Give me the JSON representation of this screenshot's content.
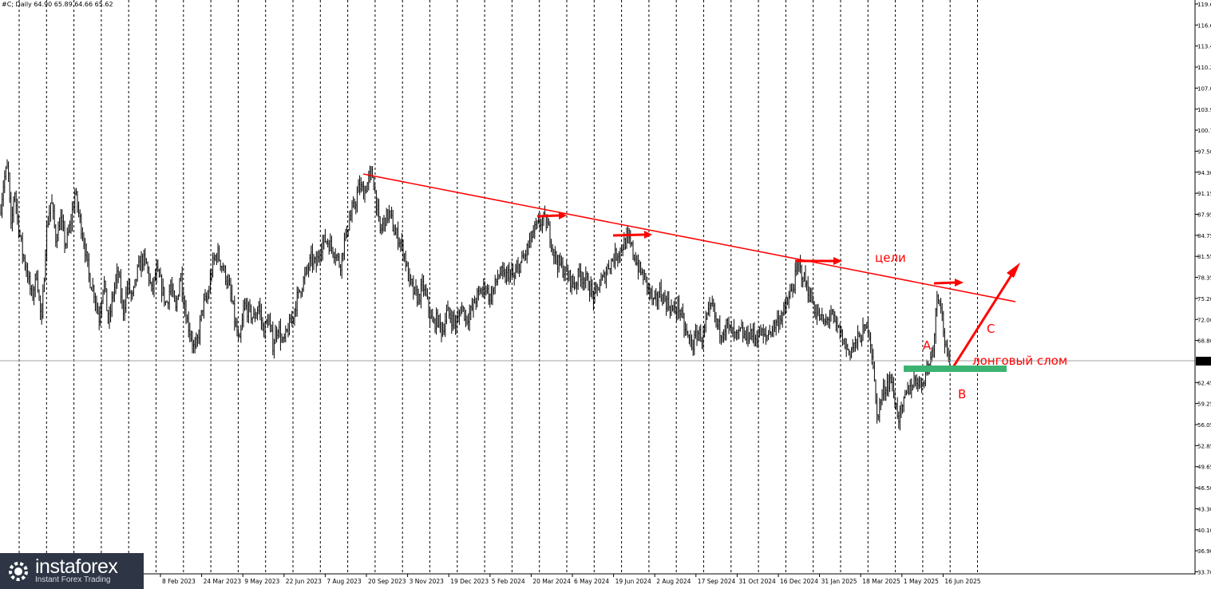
{
  "header": {
    "text": "#C; Daily  64.90 65.89 64.66 65.62"
  },
  "current_price_label": "65.62",
  "chart_data": {
    "type": "candlestick",
    "ylim": [
      33.7,
      120.6
    ],
    "yticks": [
      "119.60",
      "116.60",
      "113.40",
      "110.20",
      "107.00",
      "103.90",
      "100.70",
      "97.50",
      "94.30",
      "91.15",
      "87.95",
      "84.75",
      "81.55",
      "78.35",
      "75.20",
      "72.00",
      "68.80",
      "65.62",
      "62.45",
      "59.25",
      "56.05",
      "52.85",
      "49.65",
      "46.50",
      "43.30",
      "40.10",
      "36.90",
      "33.70"
    ],
    "xticks": [
      "8 Feb 2023",
      "24 Mar 2023",
      "9 May 2023",
      "22 Jun 2023",
      "7 Aug 2023",
      "20 Sep 2023",
      "3 Nov 2023",
      "19 Dec 2023",
      "5 Feb 2024",
      "20 Mar 2024",
      "6 May 2024",
      "19 Jun 2024",
      "2 Aug 2024",
      "17 Sep 2024",
      "31 Oct 2024",
      "16 Dec 2024",
      "31 Jan 2025",
      "18 Mar 2025",
      "1 May 2025",
      "16 Jun 2025"
    ],
    "current_price": 65.62,
    "price_path": [
      [
        0,
        88
      ],
      [
        5,
        93
      ],
      [
        10,
        95
      ],
      [
        14,
        85
      ],
      [
        18,
        92
      ],
      [
        22,
        87
      ],
      [
        28,
        82
      ],
      [
        34,
        79
      ],
      [
        40,
        75
      ],
      [
        46,
        79
      ],
      [
        52,
        71
      ],
      [
        58,
        85
      ],
      [
        64,
        90
      ],
      [
        70,
        84
      ],
      [
        76,
        87
      ],
      [
        82,
        83
      ],
      [
        88,
        86
      ],
      [
        94,
        91
      ],
      [
        100,
        87
      ],
      [
        106,
        83
      ],
      [
        112,
        78
      ],
      [
        118,
        76
      ],
      [
        124,
        72
      ],
      [
        130,
        78
      ],
      [
        136,
        71
      ],
      [
        142,
        76
      ],
      [
        148,
        79
      ],
      [
        154,
        73
      ],
      [
        160,
        77
      ],
      [
        166,
        75
      ],
      [
        172,
        79
      ],
      [
        178,
        81
      ],
      [
        184,
        80
      ],
      [
        190,
        76
      ],
      [
        196,
        79
      ],
      [
        202,
        77
      ],
      [
        208,
        74
      ],
      [
        214,
        77
      ],
      [
        220,
        73
      ],
      [
        226,
        79
      ],
      [
        232,
        73
      ],
      [
        238,
        70
      ],
      [
        244,
        67
      ],
      [
        248,
        69
      ],
      [
        254,
        74
      ],
      [
        260,
        75
      ],
      [
        266,
        80
      ],
      [
        272,
        82
      ],
      [
        278,
        80
      ],
      [
        284,
        78
      ],
      [
        290,
        75
      ],
      [
        296,
        70
      ],
      [
        300,
        68
      ],
      [
        306,
        74
      ],
      [
        312,
        73
      ],
      [
        318,
        72
      ],
      [
        324,
        74
      ],
      [
        330,
        70
      ],
      [
        336,
        72
      ],
      [
        342,
        68
      ],
      [
        348,
        71
      ],
      [
        354,
        68
      ],
      [
        360,
        70
      ],
      [
        366,
        72
      ],
      [
        372,
        75
      ],
      [
        378,
        77
      ],
      [
        384,
        79
      ],
      [
        390,
        81
      ],
      [
        396,
        80
      ],
      [
        402,
        83
      ],
      [
        408,
        84
      ],
      [
        414,
        83
      ],
      [
        420,
        82
      ],
      [
        426,
        80
      ],
      [
        432,
        84
      ],
      [
        438,
        87
      ],
      [
        444,
        89
      ],
      [
        450,
        92
      ],
      [
        456,
        91
      ],
      [
        462,
        93
      ],
      [
        466,
        94
      ],
      [
        470,
        91
      ],
      [
        476,
        85
      ],
      [
        482,
        87
      ],
      [
        488,
        88
      ],
      [
        494,
        85
      ],
      [
        500,
        84
      ],
      [
        506,
        82
      ],
      [
        512,
        78
      ],
      [
        518,
        76
      ],
      [
        524,
        75
      ],
      [
        530,
        77
      ],
      [
        536,
        74
      ],
      [
        542,
        71
      ],
      [
        548,
        72
      ],
      [
        554,
        70
      ],
      [
        560,
        73
      ],
      [
        566,
        72
      ],
      [
        572,
        71
      ],
      [
        578,
        74
      ],
      [
        584,
        72
      ],
      [
        590,
        73
      ],
      [
        596,
        75
      ],
      [
        602,
        76
      ],
      [
        608,
        77
      ],
      [
        614,
        75
      ],
      [
        620,
        77
      ],
      [
        626,
        79
      ],
      [
        632,
        78
      ],
      [
        638,
        79
      ],
      [
        644,
        78
      ],
      [
        650,
        80
      ],
      [
        656,
        81
      ],
      [
        662,
        83
      ],
      [
        668,
        85
      ],
      [
        674,
        86
      ],
      [
        680,
        87
      ],
      [
        686,
        86
      ],
      [
        690,
        84
      ],
      [
        696,
        81
      ],
      [
        702,
        80
      ],
      [
        708,
        79
      ],
      [
        714,
        78
      ],
      [
        720,
        77
      ],
      [
        726,
        79
      ],
      [
        732,
        78
      ],
      [
        738,
        77
      ],
      [
        744,
        75
      ],
      [
        750,
        77
      ],
      [
        756,
        78
      ],
      [
        762,
        80
      ],
      [
        768,
        81
      ],
      [
        774,
        82
      ],
      [
        780,
        83
      ],
      [
        786,
        84
      ],
      [
        790,
        83
      ],
      [
        796,
        81
      ],
      [
        802,
        79
      ],
      [
        808,
        78
      ],
      [
        814,
        76
      ],
      [
        820,
        74
      ],
      [
        826,
        76
      ],
      [
        832,
        75
      ],
      [
        838,
        74
      ],
      [
        844,
        73
      ],
      [
        850,
        74
      ],
      [
        856,
        71
      ],
      [
        862,
        69
      ],
      [
        868,
        68
      ],
      [
        874,
        70
      ],
      [
        880,
        69
      ],
      [
        886,
        72
      ],
      [
        892,
        74
      ],
      [
        898,
        71
      ],
      [
        904,
        70
      ],
      [
        910,
        71
      ],
      [
        916,
        70
      ],
      [
        922,
        69
      ],
      [
        928,
        70
      ],
      [
        934,
        69
      ],
      [
        940,
        70
      ],
      [
        946,
        69
      ],
      [
        952,
        70
      ],
      [
        958,
        69
      ],
      [
        964,
        70
      ],
      [
        970,
        71
      ],
      [
        976,
        72
      ],
      [
        982,
        73
      ],
      [
        988,
        75
      ],
      [
        994,
        77
      ],
      [
        1000,
        80
      ],
      [
        1004,
        79
      ],
      [
        1010,
        77
      ],
      [
        1016,
        75
      ],
      [
        1022,
        73
      ],
      [
        1028,
        72
      ],
      [
        1034,
        71
      ],
      [
        1040,
        73
      ],
      [
        1046,
        71
      ],
      [
        1052,
        70
      ],
      [
        1058,
        68
      ],
      [
        1064,
        67
      ],
      [
        1070,
        68
      ],
      [
        1076,
        69
      ],
      [
        1082,
        70
      ],
      [
        1088,
        71
      ],
      [
        1094,
        65
      ],
      [
        1098,
        57
      ],
      [
        1104,
        60
      ],
      [
        1110,
        62
      ],
      [
        1116,
        63
      ],
      [
        1120,
        60
      ],
      [
        1126,
        57
      ],
      [
        1130,
        58
      ],
      [
        1136,
        61
      ],
      [
        1142,
        62
      ],
      [
        1148,
        63
      ],
      [
        1154,
        62
      ],
      [
        1160,
        64
      ],
      [
        1166,
        66
      ],
      [
        1170,
        69
      ],
      [
        1174,
        76
      ],
      [
        1178,
        75
      ],
      [
        1182,
        70
      ],
      [
        1186,
        66
      ],
      [
        1190,
        65
      ]
    ],
    "annotations": {
      "target": "цели",
      "a": "A",
      "b": "B",
      "c": "C",
      "breakout": "лонговый слом"
    },
    "colors": {
      "candles": "#000000",
      "trendline": "#ff0000",
      "arrows": "#ff0000",
      "support": "#3cb371",
      "grid": "#000000"
    }
  },
  "logo": {
    "name": "instaforex",
    "tagline": "Instant Forex Trading"
  }
}
